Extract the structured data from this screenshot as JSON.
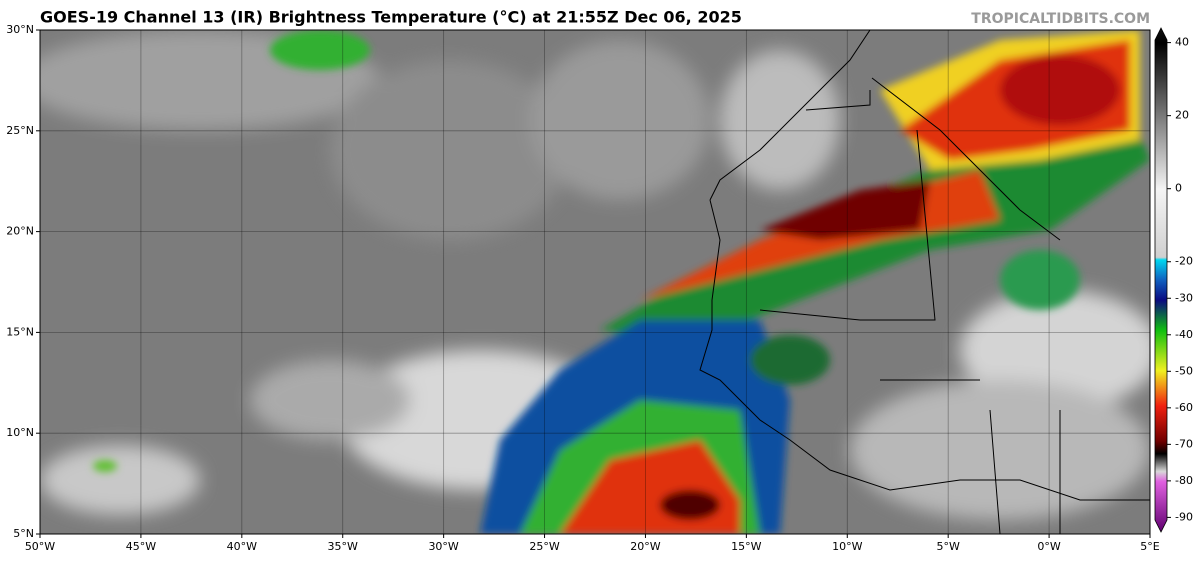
{
  "header": {
    "title": "GOES-19 Channel 13 (IR) Brightness Temperature (°C) at 21:55Z Dec 06, 2025",
    "site": "TROPICALTIDBITS.COM"
  },
  "map": {
    "xlim": [
      -50,
      5
    ],
    "ylim": [
      5,
      30
    ],
    "xticks": [
      {
        "value": -50,
        "label": "50°W"
      },
      {
        "value": -45,
        "label": "45°W"
      },
      {
        "value": -40,
        "label": "40°W"
      },
      {
        "value": -35,
        "label": "35°W"
      },
      {
        "value": -30,
        "label": "30°W"
      },
      {
        "value": -25,
        "label": "25°W"
      },
      {
        "value": -20,
        "label": "20°W"
      },
      {
        "value": -15,
        "label": "15°W"
      },
      {
        "value": -10,
        "label": "10°W"
      },
      {
        "value": -5,
        "label": "5°W"
      },
      {
        "value": 0,
        "label": "0°W"
      },
      {
        "value": 5,
        "label": "5°E"
      }
    ],
    "yticks": [
      {
        "value": 5,
        "label": "5°N"
      },
      {
        "value": 10,
        "label": "10°N"
      },
      {
        "value": 15,
        "label": "15°N"
      },
      {
        "value": 20,
        "label": "20°N"
      },
      {
        "value": 25,
        "label": "25°N"
      },
      {
        "value": 30,
        "label": "30°N"
      }
    ],
    "grid": true
  },
  "colorbar": {
    "lim": [
      -94,
      44
    ],
    "ticks": [
      40,
      20,
      0,
      -20,
      -30,
      -40,
      -50,
      -60,
      -70,
      -80,
      -90
    ]
  }
}
